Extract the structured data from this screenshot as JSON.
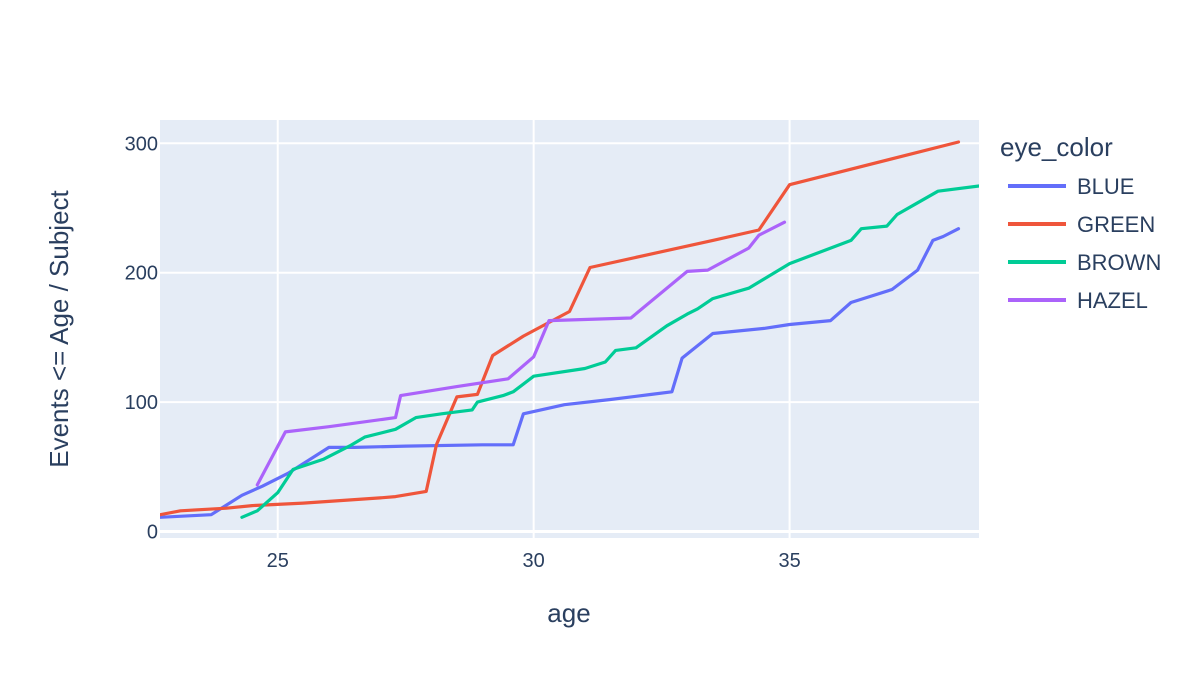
{
  "chart_data": {
    "type": "line",
    "xlabel": "age",
    "ylabel": "Events <= Age / Subject",
    "xlim": [
      22.7,
      38.7
    ],
    "ylim": [
      -5,
      318
    ],
    "xticks": [
      25,
      30,
      35
    ],
    "yticks": [
      0,
      100,
      200,
      300
    ],
    "grid": true,
    "legend": {
      "title": "eye_color",
      "placement": "right"
    },
    "series": [
      {
        "name": "BLUE",
        "color": "#636efa",
        "points": [
          [
            22.7,
            11
          ],
          [
            23.7,
            13
          ],
          [
            24.3,
            28
          ],
          [
            24.7,
            35
          ],
          [
            25.2,
            45
          ],
          [
            26.0,
            65
          ],
          [
            26.5,
            65
          ],
          [
            27.5,
            66
          ],
          [
            29.0,
            67
          ],
          [
            29.6,
            67
          ],
          [
            29.8,
            91
          ],
          [
            30.6,
            98
          ],
          [
            31.5,
            102
          ],
          [
            32.3,
            106
          ],
          [
            32.7,
            108
          ],
          [
            32.9,
            134
          ],
          [
            33.5,
            153
          ],
          [
            34.5,
            157
          ],
          [
            35.0,
            160
          ],
          [
            35.8,
            163
          ],
          [
            36.2,
            177
          ],
          [
            37.0,
            187
          ],
          [
            37.5,
            202
          ],
          [
            37.8,
            225
          ],
          [
            38.0,
            228
          ],
          [
            38.3,
            234
          ]
        ]
      },
      {
        "name": "GREEN",
        "color": "#ef553b",
        "points": [
          [
            22.7,
            13
          ],
          [
            23.1,
            16
          ],
          [
            24.0,
            18
          ],
          [
            24.5,
            20
          ],
          [
            25.5,
            22
          ],
          [
            27.0,
            26
          ],
          [
            27.3,
            27
          ],
          [
            27.9,
            31
          ],
          [
            28.1,
            67
          ],
          [
            28.5,
            104
          ],
          [
            28.9,
            106
          ],
          [
            29.2,
            136
          ],
          [
            29.8,
            151
          ],
          [
            30.7,
            170
          ],
          [
            31.1,
            204
          ],
          [
            33.5,
            225
          ],
          [
            34.4,
            233
          ],
          [
            35.0,
            268
          ],
          [
            38.3,
            301
          ]
        ]
      },
      {
        "name": "BROWN",
        "color": "#00cc96",
        "points": [
          [
            24.3,
            11
          ],
          [
            24.6,
            16
          ],
          [
            25.0,
            30
          ],
          [
            25.3,
            48
          ],
          [
            25.9,
            56
          ],
          [
            26.4,
            66
          ],
          [
            26.7,
            73
          ],
          [
            27.3,
            79
          ],
          [
            27.7,
            88
          ],
          [
            28.2,
            91
          ],
          [
            28.8,
            94
          ],
          [
            28.9,
            100
          ],
          [
            29.4,
            105
          ],
          [
            29.6,
            108
          ],
          [
            30.0,
            120
          ],
          [
            31.0,
            126
          ],
          [
            31.4,
            131
          ],
          [
            31.6,
            140
          ],
          [
            32.0,
            142
          ],
          [
            32.6,
            159
          ],
          [
            33.0,
            168
          ],
          [
            33.2,
            172
          ],
          [
            33.5,
            180
          ],
          [
            34.2,
            188
          ],
          [
            35.0,
            207
          ],
          [
            36.2,
            225
          ],
          [
            36.4,
            234
          ],
          [
            36.9,
            236
          ],
          [
            37.1,
            245
          ],
          [
            37.5,
            254
          ],
          [
            37.9,
            263
          ],
          [
            38.7,
            267
          ]
        ]
      },
      {
        "name": "HAZEL",
        "color": "#ab63fa",
        "points": [
          [
            24.6,
            36
          ],
          [
            25.15,
            77
          ],
          [
            26.0,
            81
          ],
          [
            27.3,
            88
          ],
          [
            27.4,
            105
          ],
          [
            28.5,
            112
          ],
          [
            29.5,
            118
          ],
          [
            30.0,
            135
          ],
          [
            30.3,
            163
          ],
          [
            31.9,
            165
          ],
          [
            33.0,
            201
          ],
          [
            33.4,
            202
          ],
          [
            34.2,
            219
          ],
          [
            34.4,
            229
          ],
          [
            34.9,
            239
          ]
        ]
      }
    ]
  }
}
